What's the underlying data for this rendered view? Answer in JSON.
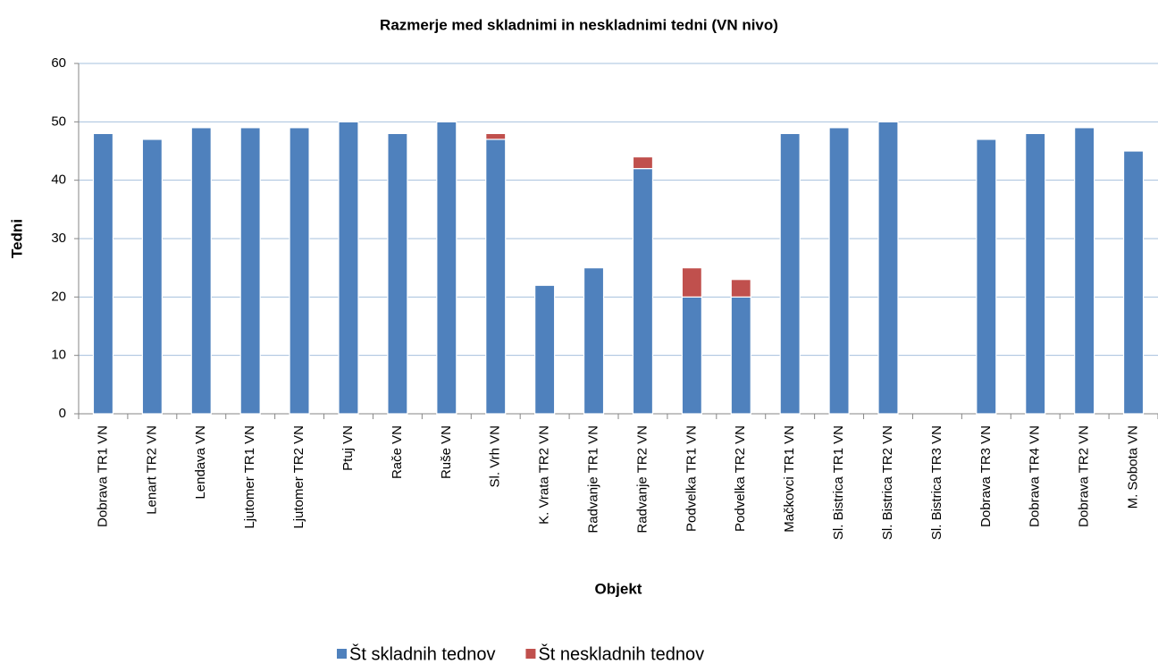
{
  "chart_data": {
    "type": "bar",
    "stacked": true,
    "title": "Razmerje med skladnimi in neskladnimi tedni (VN nivo)",
    "x_label": "Objekt",
    "y_label": "Tedni",
    "categories": [
      "Dobrava TR1 VN",
      "Lenart TR2 VN",
      "Lendava VN",
      "Ljutomer TR1 VN",
      "Ljutomer TR2 VN",
      "Ptuj VN",
      "Rače VN",
      "Ruše VN",
      "Sl. Vrh VN",
      "K. Vrata TR2 VN",
      "Radvanje TR1 VN",
      "Radvanje TR2 VN",
      "Podvelka TR1 VN",
      "Podvelka TR2 VN",
      "Mačkovci TR1 VN",
      "Sl. Bistrica TR1 VN",
      "Sl. Bistrica TR2 VN",
      "Sl. Bistrica TR3 VN",
      "Dobrava TR3 VN",
      "Dobrava TR4 VN",
      "Dobrava TR2 VN",
      "M. Sobota VN"
    ],
    "series": [
      {
        "name": "Št skladnih tednov",
        "color": "#4f81bd",
        "values": [
          48,
          47,
          49,
          49,
          49,
          50,
          48,
          50,
          47,
          22,
          25,
          42,
          20,
          20,
          48,
          49,
          50,
          0,
          47,
          48,
          49,
          45
        ]
      },
      {
        "name": "Št neskladnih tednov",
        "color": "#c0504d",
        "values": [
          0,
          0,
          0,
          0,
          0,
          0,
          0,
          0,
          1,
          0,
          0,
          2,
          5,
          3,
          0,
          0,
          0,
          0,
          0,
          0,
          0,
          0
        ]
      }
    ],
    "ylim": [
      0,
      60
    ],
    "yticks": [
      0,
      10,
      20,
      30,
      40,
      50,
      60
    ],
    "grid": true,
    "legend": "bottom"
  }
}
